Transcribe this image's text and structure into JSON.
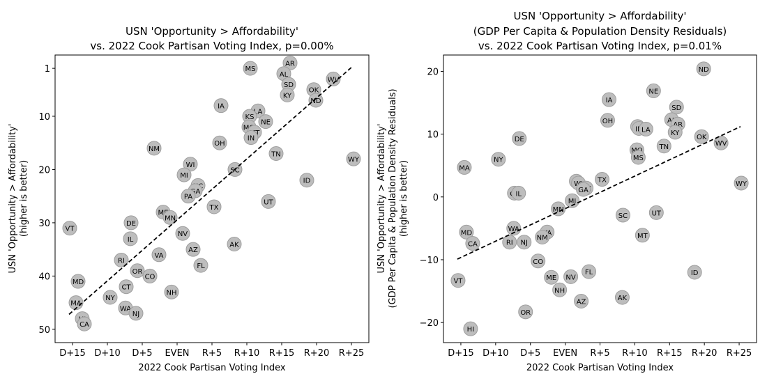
{
  "chart_data": [
    {
      "type": "scatter",
      "title_lines": [
        "USN 'Opportunity > Affordability'",
        "vs. 2022 Cook Partisan Voting Index, p=0.00%"
      ],
      "xlabel": "2022 Cook Partisan Voting Index",
      "ylabel_lines": [
        "USN 'Opportunity > Affordability'",
        "(higher is better)"
      ],
      "xlim": [
        -17.5,
        27.5
      ],
      "ylim": [
        52.5,
        -1.5
      ],
      "inverted_y": true,
      "xticks": [
        {
          "v": -15,
          "label": "D+15"
        },
        {
          "v": -10,
          "label": "D+10"
        },
        {
          "v": -5,
          "label": "D+5"
        },
        {
          "v": 0,
          "label": "EVEN"
        },
        {
          "v": 5,
          "label": "R+5"
        },
        {
          "v": 10,
          "label": "R+10"
        },
        {
          "v": 15,
          "label": "R+15"
        },
        {
          "v": 20,
          "label": "R+20"
        },
        {
          "v": 25,
          "label": "R+25"
        }
      ],
      "yticks": [
        {
          "v": 1,
          "label": "1"
        },
        {
          "v": 10,
          "label": "10"
        },
        {
          "v": 20,
          "label": "20"
        },
        {
          "v": 30,
          "label": "30"
        },
        {
          "v": 40,
          "label": "40"
        },
        {
          "v": 50,
          "label": "50"
        }
      ],
      "trend_line": {
        "x": [
          -15.5,
          25.2
        ],
        "y": [
          47.2,
          0.6
        ]
      },
      "points": [
        {
          "label": "MS",
          "x": 10.5,
          "y": 1
        },
        {
          "label": "AR",
          "x": 16.2,
          "y": 0
        },
        {
          "label": "AL",
          "x": 15.3,
          "y": 2
        },
        {
          "label": "WV",
          "x": 22.4,
          "y": 3
        },
        {
          "label": "SD",
          "x": 16.0,
          "y": 4
        },
        {
          "label": "OK",
          "x": 19.6,
          "y": 5
        },
        {
          "label": "KY",
          "x": 15.8,
          "y": 6
        },
        {
          "label": "ND",
          "x": 19.9,
          "y": 7
        },
        {
          "label": "IA",
          "x": 6.3,
          "y": 8
        },
        {
          "label": "LA",
          "x": 11.6,
          "y": 9
        },
        {
          "label": "KS",
          "x": 10.4,
          "y": 10
        },
        {
          "label": "NE",
          "x": 12.7,
          "y": 11
        },
        {
          "label": "MO",
          "x": 10.3,
          "y": 12
        },
        {
          "label": "MT",
          "x": 11.1,
          "y": 13
        },
        {
          "label": "IN",
          "x": 10.6,
          "y": 14
        },
        {
          "label": "OH",
          "x": 6.1,
          "y": 15
        },
        {
          "label": "NM",
          "x": -3.3,
          "y": 16
        },
        {
          "label": "TN",
          "x": 14.2,
          "y": 17
        },
        {
          "label": "WY",
          "x": 25.3,
          "y": 18
        },
        {
          "label": "WI",
          "x": 1.9,
          "y": 19
        },
        {
          "label": "SC",
          "x": 8.3,
          "y": 20
        },
        {
          "label": "MI",
          "x": 1.0,
          "y": 21
        },
        {
          "label": "ID",
          "x": 18.6,
          "y": 22
        },
        {
          "label": "NC",
          "x": 3.0,
          "y": 23
        },
        {
          "label": "GA",
          "x": 2.6,
          "y": 24
        },
        {
          "label": "PA",
          "x": 1.6,
          "y": 25
        },
        {
          "label": "UT",
          "x": 13.1,
          "y": 26
        },
        {
          "label": "TX",
          "x": 5.3,
          "y": 27
        },
        {
          "label": "ME",
          "x": -2.0,
          "y": 28
        },
        {
          "label": "MN",
          "x": -1.0,
          "y": 29
        },
        {
          "label": "DE",
          "x": -6.6,
          "y": 30
        },
        {
          "label": "VT",
          "x": -15.4,
          "y": 31
        },
        {
          "label": "NV",
          "x": 0.8,
          "y": 32
        },
        {
          "label": "IL",
          "x": -6.7,
          "y": 33
        },
        {
          "label": "AK",
          "x": 8.2,
          "y": 34
        },
        {
          "label": "AZ",
          "x": 2.3,
          "y": 35
        },
        {
          "label": "VA",
          "x": -2.6,
          "y": 36
        },
        {
          "label": "RI",
          "x": -8.0,
          "y": 37
        },
        {
          "label": "FL",
          "x": 3.4,
          "y": 38
        },
        {
          "label": "OR",
          "x": -5.7,
          "y": 39
        },
        {
          "label": "CO",
          "x": -3.9,
          "y": 40
        },
        {
          "label": "MD",
          "x": -14.2,
          "y": 41
        },
        {
          "label": "CT",
          "x": -7.3,
          "y": 42
        },
        {
          "label": "NH",
          "x": -0.8,
          "y": 43
        },
        {
          "label": "NY",
          "x": -9.6,
          "y": 44
        },
        {
          "label": "MA",
          "x": -14.5,
          "y": 45
        },
        {
          "label": "WA",
          "x": -7.4,
          "y": 46
        },
        {
          "label": "NJ",
          "x": -5.9,
          "y": 47
        },
        {
          "label": "HI",
          "x": -13.6,
          "y": 48
        },
        {
          "label": "CA",
          "x": -13.3,
          "y": 49
        }
      ]
    },
    {
      "type": "scatter",
      "title_lines": [
        "USN 'Opportunity > Affordability'",
        "(GDP Per Capita & Population Density Residuals)",
        "vs. 2022 Cook Partisan Voting Index, p=0.01%"
      ],
      "xlabel": "2022 Cook Partisan Voting Index",
      "ylabel_lines": [
        "USN 'Opportunity > Affordability'",
        "(GDP Per Capita & Population Density Residuals)",
        "(higher is better)"
      ],
      "xlim": [
        -17.5,
        27.5
      ],
      "ylim": [
        -23.2,
        22.6
      ],
      "inverted_y": false,
      "xticks": [
        {
          "v": -15,
          "label": "D+15"
        },
        {
          "v": -10,
          "label": "D+10"
        },
        {
          "v": -5,
          "label": "D+5"
        },
        {
          "v": 0,
          "label": "EVEN"
        },
        {
          "v": 5,
          "label": "R+5"
        },
        {
          "v": 10,
          "label": "R+10"
        },
        {
          "v": 15,
          "label": "R+15"
        },
        {
          "v": 20,
          "label": "R+20"
        },
        {
          "v": 25,
          "label": "R+25"
        }
      ],
      "yticks": [
        {
          "v": -20,
          "label": "−20"
        },
        {
          "v": -10,
          "label": "−10"
        },
        {
          "v": 0,
          "label": "0"
        },
        {
          "v": 10,
          "label": "10"
        },
        {
          "v": 20,
          "label": "20"
        }
      ],
      "trend_line": {
        "x": [
          -15.5,
          25.2
        ],
        "y": [
          -9.9,
          11.2
        ]
      },
      "points": [
        {
          "label": "ND",
          "x": 19.9,
          "y": 20.4
        },
        {
          "label": "NE",
          "x": 12.7,
          "y": 16.9
        },
        {
          "label": "IA",
          "x": 6.3,
          "y": 15.5
        },
        {
          "label": "SD",
          "x": 16.0,
          "y": 14.3
        },
        {
          "label": "OH",
          "x": 6.1,
          "y": 12.2
        },
        {
          "label": "AL",
          "x": 15.3,
          "y": 12.3
        },
        {
          "label": "AR",
          "x": 16.2,
          "y": 11.6
        },
        {
          "label": "KS",
          "x": 10.4,
          "y": 11.2
        },
        {
          "label": "IN",
          "x": 10.6,
          "y": 10.9
        },
        {
          "label": "LA",
          "x": 11.6,
          "y": 10.8
        },
        {
          "label": "KY",
          "x": 15.8,
          "y": 10.3
        },
        {
          "label": "OK",
          "x": 19.6,
          "y": 9.6
        },
        {
          "label": "DE",
          "x": -6.6,
          "y": 9.3
        },
        {
          "label": "WV",
          "x": 22.4,
          "y": 8.6
        },
        {
          "label": "TN",
          "x": 14.2,
          "y": 8.1
        },
        {
          "label": "MO",
          "x": 10.3,
          "y": 7.5
        },
        {
          "label": "MS",
          "x": 10.5,
          "y": 6.3
        },
        {
          "label": "NY",
          "x": -9.6,
          "y": 6.0
        },
        {
          "label": "MA",
          "x": -14.5,
          "y": 4.7
        },
        {
          "label": "TX",
          "x": 5.3,
          "y": 2.8
        },
        {
          "label": "PA",
          "x": 1.6,
          "y": 2.5
        },
        {
          "label": "WI",
          "x": 1.9,
          "y": 2.2
        },
        {
          "label": "NC",
          "x": 3.0,
          "y": 1.4
        },
        {
          "label": "GA",
          "x": 2.6,
          "y": 1.2
        },
        {
          "label": "WY",
          "x": 25.3,
          "y": 2.2
        },
        {
          "label": "CT",
          "x": -7.3,
          "y": 0.6
        },
        {
          "label": "IL",
          "x": -6.7,
          "y": 0.6
        },
        {
          "label": "MI",
          "x": 1.0,
          "y": -0.6
        },
        {
          "label": "MN",
          "x": -1.0,
          "y": -1.9
        },
        {
          "label": "UT",
          "x": 13.1,
          "y": -2.5
        },
        {
          "label": "SC",
          "x": 8.3,
          "y": -2.9
        },
        {
          "label": "WA",
          "x": -7.4,
          "y": -5.0
        },
        {
          "label": "VA",
          "x": -2.6,
          "y": -5.6
        },
        {
          "label": "MD",
          "x": -14.2,
          "y": -5.6
        },
        {
          "label": "MT",
          "x": 11.1,
          "y": -6.1
        },
        {
          "label": "NM",
          "x": -3.3,
          "y": -6.4
        },
        {
          "label": "RI",
          "x": -8.0,
          "y": -7.2
        },
        {
          "label": "NJ",
          "x": -5.9,
          "y": -7.2
        },
        {
          "label": "CA",
          "x": -13.3,
          "y": -7.4
        },
        {
          "label": "CO",
          "x": -3.9,
          "y": -10.2
        },
        {
          "label": "FL",
          "x": 3.4,
          "y": -11.9
        },
        {
          "label": "ID",
          "x": 18.6,
          "y": -12.0
        },
        {
          "label": "ME",
          "x": -2.0,
          "y": -12.8
        },
        {
          "label": "NV",
          "x": 0.8,
          "y": -12.7
        },
        {
          "label": "VT",
          "x": -15.4,
          "y": -13.3
        },
        {
          "label": "NH",
          "x": -0.8,
          "y": -14.8
        },
        {
          "label": "AK",
          "x": 8.2,
          "y": -16.0
        },
        {
          "label": "AZ",
          "x": 2.3,
          "y": -16.6
        },
        {
          "label": "OR",
          "x": -5.7,
          "y": -18.3
        },
        {
          "label": "HI",
          "x": -13.6,
          "y": -21.0
        }
      ]
    }
  ]
}
